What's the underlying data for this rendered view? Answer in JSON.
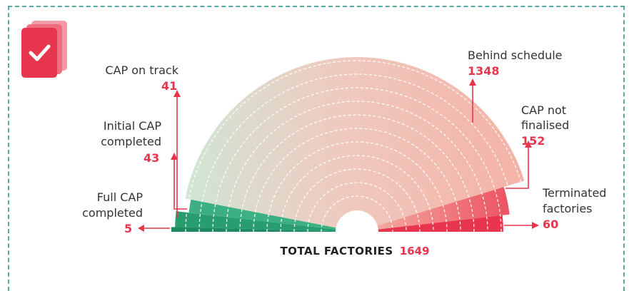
{
  "chart_data": {
    "type": "pie",
    "variant": "half-donut",
    "total_label": "TOTAL FACTORIES",
    "total_value": 1649,
    "segments": [
      {
        "name": "Full CAP completed",
        "label_lines": [
          "Full CAP",
          "completed"
        ],
        "value": 5,
        "color": "#1f8c63"
      },
      {
        "name": "Initial CAP completed",
        "label_lines": [
          "Initial CAP",
          "completed"
        ],
        "value": 43,
        "color": "#2aa072"
      },
      {
        "name": "CAP on track",
        "label_lines": [
          "CAP on track"
        ],
        "value": 41,
        "color": "#3fb184"
      },
      {
        "name": "Behind schedule",
        "label_lines": [
          "Behind schedule"
        ],
        "value": 1348,
        "color": "#f2b7ab"
      },
      {
        "name": "CAP not finalised",
        "label_lines": [
          "CAP not",
          "finalised"
        ],
        "value": 152,
        "color": "#ef6f74"
      },
      {
        "name": "Terminated factories",
        "label_lines": [
          "Terminated",
          "factories"
        ],
        "value": 60,
        "color": "#e8354e"
      }
    ]
  },
  "colors": {
    "accent": "#e8354e",
    "frame": "#58aaa0",
    "arrow": "#e8354e"
  },
  "icon": "checklist-cards-icon"
}
